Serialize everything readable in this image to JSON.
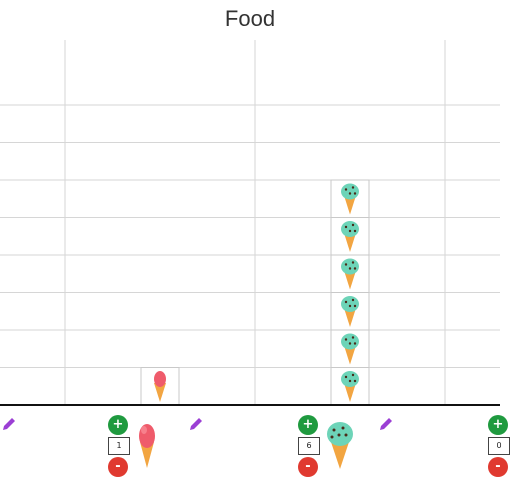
{
  "chart_title": "Food",
  "chart_data": {
    "type": "bar",
    "title": "Food",
    "categories": [
      "",
      "strawberry ice cream",
      "mint chocolate chip ice cream",
      ""
    ],
    "values": [
      0,
      1,
      6,
      0
    ],
    "ylim": [
      0,
      8
    ],
    "grid": true,
    "marker": "ice-cream-cone-icon"
  },
  "controls": [
    {
      "value": "1",
      "plus": "+",
      "minus": "-",
      "icon": "strawberry-ice-cream-icon"
    },
    {
      "value": "6",
      "plus": "+",
      "minus": "-",
      "icon": "mint-ice-cream-icon"
    },
    {
      "value": "0",
      "plus": "+",
      "minus": "-",
      "icon": ""
    }
  ],
  "colors": {
    "plus": "#1f9a3f",
    "minus": "#e03a30",
    "pencil": "#9b3fd4",
    "grid": "#d6d6d6",
    "axis": "#111111"
  }
}
